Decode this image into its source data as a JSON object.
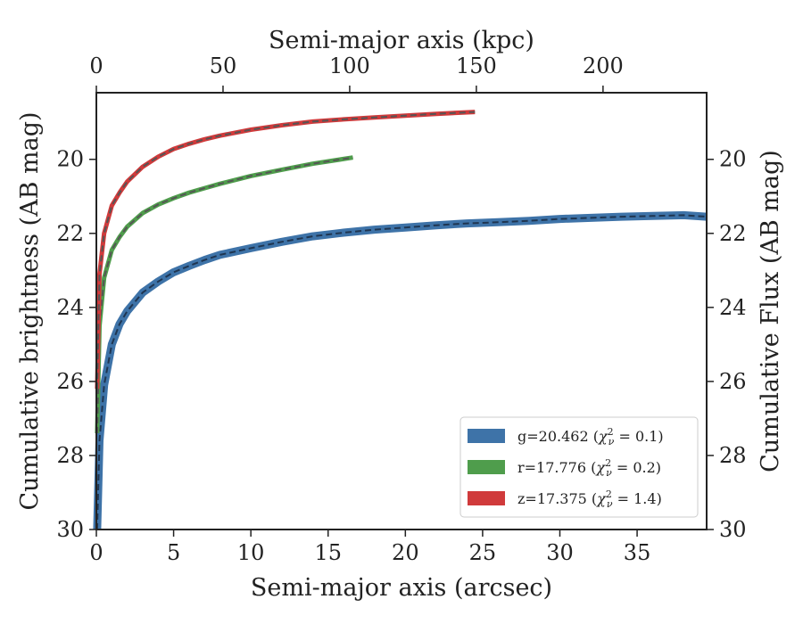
{
  "chart_data": {
    "type": "line",
    "xlabel": "Semi-major axis (arcsec)",
    "ylabel": "Cumulative brightness (AB mag)",
    "xlabel_top": "Semi-major axis (kpc)",
    "ylabel_right": "Cumulative Flux (AB mag)",
    "xlim": [
      0,
      39.5
    ],
    "ylim": [
      30,
      18.2
    ],
    "y_inverted": true,
    "xlim_top": [
      0,
      240.9
    ],
    "xticks": [
      0,
      5,
      10,
      15,
      20,
      25,
      30,
      35
    ],
    "xticks_top": [
      0,
      50,
      100,
      150,
      200
    ],
    "yticks": [
      20,
      22,
      24,
      26,
      28,
      30
    ],
    "grid": false,
    "legend_position": "lower-right",
    "series": [
      {
        "name": "g=20.462 (χ²ᵥ = 0.1)",
        "label_prefix": "g=20.462",
        "chi2": "0.1",
        "color": "#3e73a8",
        "x": [
          0.05,
          0.2,
          0.5,
          1,
          1.5,
          2,
          3,
          4,
          5,
          6,
          7,
          8,
          10,
          12,
          14,
          16,
          18,
          20,
          22,
          24,
          26,
          28,
          30,
          32,
          34,
          36,
          38,
          39.5
        ],
        "y": [
          30.0,
          27.6,
          26.1,
          25.0,
          24.45,
          24.1,
          23.6,
          23.3,
          23.05,
          22.88,
          22.72,
          22.58,
          22.4,
          22.23,
          22.08,
          21.98,
          21.9,
          21.84,
          21.78,
          21.73,
          21.7,
          21.66,
          21.61,
          21.58,
          21.55,
          21.53,
          21.51,
          21.55
        ]
      },
      {
        "name": "r=17.776 (χ²ᵥ = 0.2)",
        "label_prefix": "r=17.776",
        "chi2": "0.2",
        "color": "#4f9d4c",
        "x": [
          0.05,
          0.2,
          0.5,
          1,
          1.5,
          2,
          3,
          4,
          5,
          6,
          7,
          8,
          10,
          12,
          14,
          16.6
        ],
        "y": [
          27.4,
          24.5,
          23.2,
          22.45,
          22.1,
          21.82,
          21.45,
          21.22,
          21.05,
          20.9,
          20.78,
          20.66,
          20.45,
          20.28,
          20.12,
          19.95
        ]
      },
      {
        "name": "z=17.375 (χ²ᵥ = 1.4)",
        "label_prefix": "z=17.375",
        "chi2": "1.4",
        "color": "#d03a3b",
        "x": [
          0.05,
          0.2,
          0.5,
          1,
          1.5,
          2,
          3,
          4,
          5,
          6,
          7,
          8,
          10,
          12,
          14,
          16,
          18,
          20,
          22,
          24.5
        ],
        "y": [
          26.2,
          23.1,
          22.0,
          21.25,
          20.9,
          20.6,
          20.2,
          19.93,
          19.72,
          19.58,
          19.46,
          19.36,
          19.2,
          19.08,
          18.98,
          18.92,
          18.87,
          18.82,
          18.77,
          18.72
        ]
      }
    ]
  }
}
